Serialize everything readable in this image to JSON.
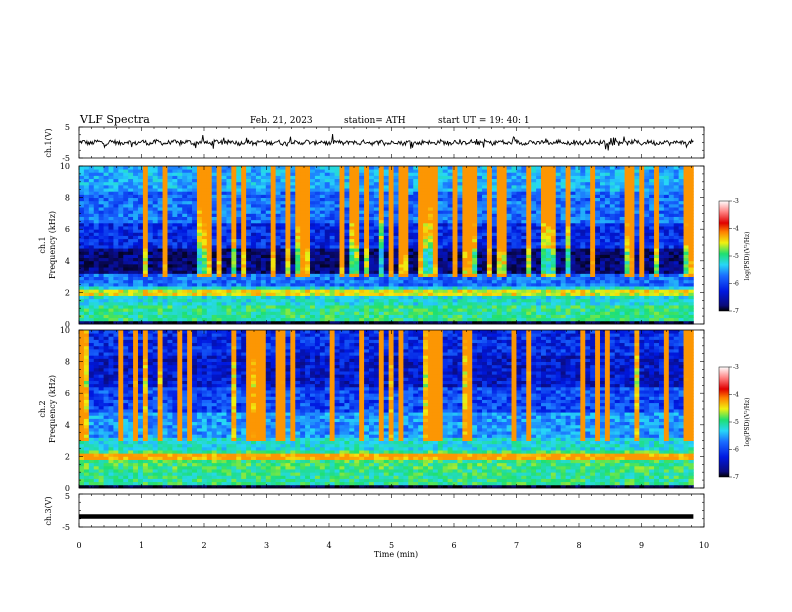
{
  "header": {
    "title": "VLF  Spectra",
    "date": "Feb. 21, 2023",
    "station": "station= ATH",
    "start": "start  UT  =    19: 40: 1"
  },
  "chart_data": [
    {
      "type": "line",
      "panel": "ch1",
      "ylabel": "ch.1(V)",
      "xlim": [
        0,
        10
      ],
      "ylim": [
        -5,
        5
      ],
      "y_tick_labels": [
        "5",
        "-5"
      ],
      "trace_level_V": 0,
      "trace_end_min": 9.83
    },
    {
      "type": "heatmap",
      "panel": "ch1",
      "ylabel_channel": "ch.1",
      "ylabel": "Frequency  (kHz)",
      "xlim": [
        0,
        10
      ],
      "ylim": [
        0,
        10
      ],
      "y_tick_labels": [
        "0",
        "2",
        "4",
        "6",
        "8",
        "10"
      ],
      "data_end_min": 9.83,
      "colorbar": {
        "label": "log(PSD)(V²/Hz)",
        "ticks": [
          "-3",
          "-4",
          "-5",
          "-6",
          "-7"
        ],
        "range": [
          -7,
          -3
        ]
      }
    },
    {
      "type": "heatmap",
      "panel": "ch2",
      "ylabel_channel": "ch.2",
      "ylabel": "Frequency  (kHz)",
      "xlim": [
        0,
        10
      ],
      "ylim": [
        0,
        10
      ],
      "y_tick_labels": [
        "0",
        "2",
        "4",
        "6",
        "8",
        "10"
      ],
      "data_end_min": 9.83,
      "colorbar": {
        "label": "log(PSD)(V²/Hz)",
        "ticks": [
          "-3",
          "-4",
          "-5",
          "-6",
          "-7"
        ],
        "range": [
          -7,
          -3
        ]
      }
    },
    {
      "type": "line",
      "panel": "ch3",
      "ylabel": "ch.3(V)",
      "xlabel": "Time  (min)",
      "xlim": [
        0,
        10
      ],
      "ylim": [
        -5,
        5
      ],
      "y_tick_labels": [
        "5",
        "-5"
      ],
      "x_tick_labels": [
        "0",
        "1",
        "2",
        "3",
        "4",
        "5",
        "6",
        "7",
        "8",
        "9",
        "10"
      ],
      "trace_level_V": -1.8,
      "trace_end_min": 9.83
    }
  ],
  "colors": {
    "scale": [
      "#000000",
      "#0b0b7a",
      "#0018e0",
      "#1b6cff",
      "#27d7f7",
      "#1fe070",
      "#f0f010",
      "#ff7f00",
      "#e00000",
      "#ff8080",
      "#ffffff"
    ]
  }
}
